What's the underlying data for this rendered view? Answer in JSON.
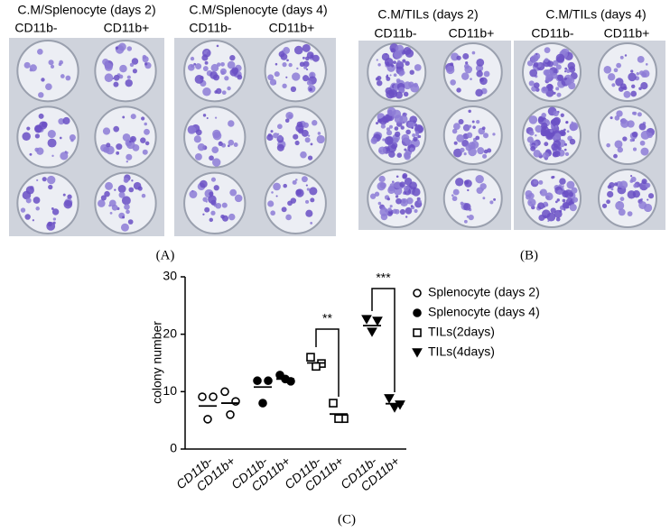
{
  "panel_a": {
    "label": "(A)",
    "groups": [
      {
        "title": "C.M/Splenocyte (days 2)",
        "columns": [
          "CD11b-",
          "CD11b+"
        ]
      },
      {
        "title": "C.M/Splenocyte (days 4)",
        "columns": [
          "CD11b-",
          "CD11b+"
        ]
      }
    ]
  },
  "panel_b": {
    "label": "(B)",
    "groups": [
      {
        "title": "C.M/TILs (days 2)",
        "columns": [
          "CD11b-",
          "CD11b+"
        ]
      },
      {
        "title": "C.M/TILs (days 4)",
        "columns": [
          "CD11b-",
          "CD11b+"
        ]
      }
    ]
  },
  "chart_data": {
    "type": "dot",
    "label": "(C)",
    "y_label": "colony number",
    "categories": [
      "CD11b-",
      "CD11b+",
      "CD11b-",
      "CD11b+",
      "CD11b-",
      "CD11b+",
      "CD11b-",
      "CD11b+"
    ],
    "ylim": [
      0,
      30
    ],
    "yticks": [
      0,
      10,
      20,
      30
    ],
    "series": [
      {
        "name": "Splenocyte (days 2)",
        "marker": "open-circle",
        "color": "#000000",
        "values": [
          [
            9.1,
            9.1,
            5.2
          ],
          [
            10,
            8.3,
            6
          ],
          null,
          null,
          null,
          null,
          null,
          null
        ],
        "means": [
          7.5,
          8,
          null,
          null,
          null,
          null,
          null,
          null
        ]
      },
      {
        "name": "Splenocyte (days 4)",
        "marker": "circle",
        "color": "#000000",
        "values": [
          null,
          null,
          [
            11.9,
            11.9,
            8
          ],
          [
            12.9,
            11.8,
            12.2
          ],
          null,
          null,
          null,
          null
        ],
        "means": [
          null,
          null,
          10.8,
          12.2,
          null,
          null,
          null,
          null
        ]
      },
      {
        "name": "TILs(2days)",
        "marker": "open-square",
        "color": "#000000",
        "values": [
          null,
          null,
          null,
          null,
          [
            16,
            14.9,
            14.4
          ],
          [
            8,
            5.3,
            5.3
          ],
          null,
          null
        ],
        "means": [
          null,
          null,
          null,
          null,
          15,
          6.1,
          null,
          null
        ]
      },
      {
        "name": "TILs(4days)",
        "marker": "triangle-down",
        "color": "#000000",
        "values": [
          null,
          null,
          null,
          null,
          null,
          null,
          [
            22.6,
            22.3,
            20.4
          ],
          [
            8.8,
            7.7,
            7.2
          ]
        ],
        "means": [
          null,
          null,
          null,
          null,
          null,
          null,
          21.5,
          7.9
        ]
      }
    ],
    "annotations": [
      "**",
      "***"
    ]
  }
}
